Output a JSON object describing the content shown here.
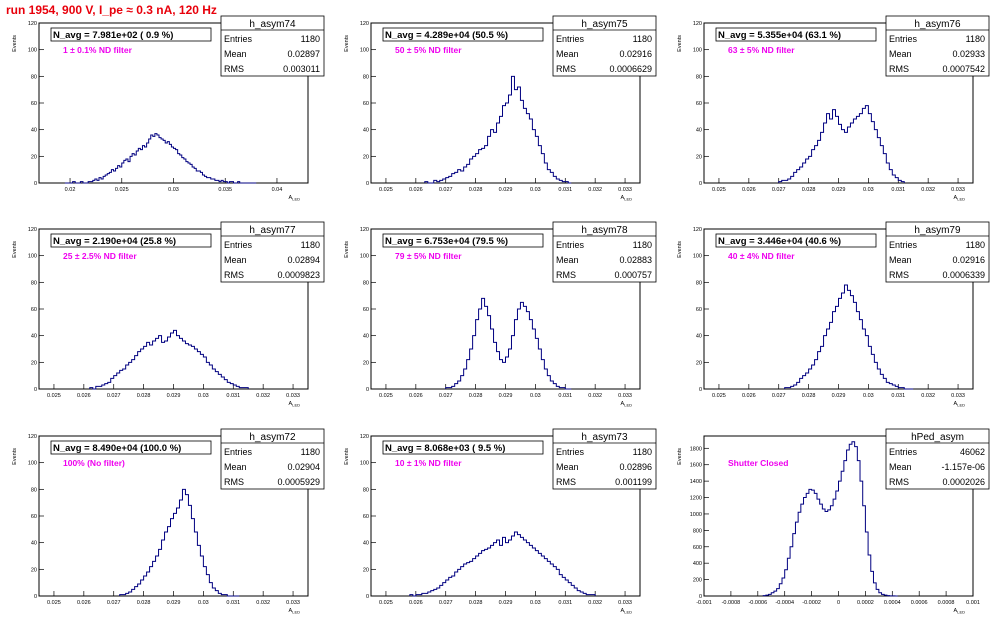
{
  "page": {
    "title": "run 1954,   900 V, I_pe ≈ 0.3 nA, 120 Hz"
  },
  "colors": {
    "histogram": "#000080",
    "label": "#ee00ee",
    "title": "#e8000b",
    "axis": "#000000"
  },
  "stats_labels": {
    "entries": "Entries",
    "mean": "Mean",
    "rms": "RMS"
  },
  "chart_data": [
    {
      "type": "histogram",
      "name": "h_asym74",
      "headline": "N_avg = 7.981e+02 ( 0.9 %)",
      "note": "1 ± 0.1% ND filter",
      "stats": {
        "entries": "1180",
        "mean": "0.02897",
        "rms": "0.003011"
      },
      "xlabel": "A_LED",
      "ylabel": "Events",
      "xlim": [
        0.017,
        0.043
      ],
      "ylim": [
        0,
        120
      ],
      "xticks": [
        0.02,
        0.025,
        0.03,
        0.035,
        0.04
      ],
      "xtick_labels": [
        "0.02",
        "0.025",
        "0.03",
        "0.035",
        "0.04"
      ],
      "yticks": [
        0,
        20,
        40,
        60,
        80,
        100,
        120
      ],
      "bins": [
        [
          0.0195,
          0.022,
          [
            0,
            0,
            0,
            1,
            0,
            0,
            1,
            0,
            0,
            1
          ]
        ],
        [
          0.022,
          0.026,
          [
            1,
            2,
            3,
            2,
            4,
            3,
            5,
            6,
            7,
            8,
            10,
            9,
            11,
            13,
            12,
            15,
            17,
            18,
            16,
            20
          ]
        ],
        [
          0.026,
          0.03,
          [
            22,
            21,
            24,
            26,
            25,
            28,
            27,
            30,
            33,
            36,
            35,
            37,
            36,
            34,
            33,
            32,
            30,
            31,
            29,
            27
          ]
        ],
        [
          0.03,
          0.034,
          [
            26,
            25,
            22,
            21,
            19,
            18,
            16,
            15,
            14,
            12,
            11,
            9,
            9,
            8,
            6,
            5,
            4,
            4,
            3,
            3
          ]
        ],
        [
          0.034,
          0.038,
          [
            2,
            2,
            1,
            2,
            1,
            1,
            0,
            1,
            1,
            0,
            0,
            1,
            0,
            0,
            0,
            0,
            0,
            0,
            0,
            0
          ]
        ]
      ]
    },
    {
      "type": "histogram",
      "name": "h_asym75",
      "headline": "N_avg = 4.289e+04 (50.5 %)",
      "note": "50 ± 5% ND filter",
      "stats": {
        "entries": "1180",
        "mean": "0.02916",
        "rms": "0.0006629"
      },
      "xlabel": "A_LED",
      "ylabel": "Events",
      "xlim": [
        0.0245,
        0.0335
      ],
      "ylim": [
        0,
        120
      ],
      "xticks": [
        0.025,
        0.026,
        0.027,
        0.028,
        0.029,
        0.03,
        0.031,
        0.032,
        0.033
      ],
      "xtick_labels": [
        "0.025",
        "0.026",
        "0.027",
        "0.028",
        "0.029",
        "0.03",
        "0.031",
        "0.032",
        "0.033"
      ],
      "yticks": [
        0,
        20,
        40,
        60,
        80,
        100,
        120
      ],
      "bins": [
        [
          0.0263,
          0.028,
          [
            1,
            0,
            0,
            2,
            1,
            2,
            3,
            4,
            5,
            7,
            8,
            10,
            9,
            12,
            14,
            18,
            20
          ]
        ],
        [
          0.028,
          0.0295,
          [
            22,
            25,
            26,
            28,
            35,
            40,
            38,
            45,
            50,
            58,
            60,
            66,
            80,
            70,
            72
          ]
        ],
        [
          0.0295,
          0.0312,
          [
            62,
            56,
            52,
            48,
            40,
            35,
            28,
            22,
            15,
            10,
            8,
            5,
            3,
            2,
            1,
            1,
            0
          ]
        ]
      ]
    },
    {
      "type": "histogram",
      "name": "h_asym76",
      "headline": "N_avg = 5.355e+04 (63.1 %)",
      "note": "63 ± 5% ND filter",
      "stats": {
        "entries": "1180",
        "mean": "0.02933",
        "rms": "0.0007542"
      },
      "xlabel": "A_LED",
      "ylabel": "Events",
      "xlim": [
        0.0245,
        0.0335
      ],
      "ylim": [
        0,
        120
      ],
      "xticks": [
        0.025,
        0.026,
        0.027,
        0.028,
        0.029,
        0.03,
        0.031,
        0.032,
        0.033
      ],
      "xtick_labels": [
        "0.025",
        "0.026",
        "0.027",
        "0.028",
        "0.029",
        "0.03",
        "0.031",
        "0.032",
        "0.033"
      ],
      "yticks": [
        0,
        20,
        40,
        60,
        80,
        100,
        120
      ],
      "bins": [
        [
          0.027,
          0.0285,
          [
            1,
            2,
            2,
            3,
            5,
            8,
            10,
            12,
            15,
            18,
            20,
            25,
            28,
            32,
            38
          ]
        ],
        [
          0.0285,
          0.03,
          [
            45,
            52,
            48,
            55,
            50,
            44,
            40,
            38,
            42,
            45,
            48,
            50,
            52,
            56,
            58
          ]
        ],
        [
          0.03,
          0.0312,
          [
            52,
            46,
            40,
            34,
            28,
            22,
            15,
            10,
            6,
            4,
            2,
            1
          ]
        ]
      ]
    },
    {
      "type": "histogram",
      "name": "h_asym77",
      "headline": "N_avg = 2.190e+04 (25.8 %)",
      "note": "25 ± 2.5% ND filter",
      "stats": {
        "entries": "1180",
        "mean": "0.02894",
        "rms": "0.0009823"
      },
      "xlabel": "A_LED",
      "ylabel": "Events",
      "xlim": [
        0.0245,
        0.0335
      ],
      "ylim": [
        0,
        120
      ],
      "xticks": [
        0.025,
        0.026,
        0.027,
        0.028,
        0.029,
        0.03,
        0.031,
        0.032,
        0.033
      ],
      "xtick_labels": [
        "0.025",
        "0.026",
        "0.027",
        "0.028",
        "0.029",
        "0.03",
        "0.031",
        "0.032",
        "0.033"
      ],
      "yticks": [
        0,
        20,
        40,
        60,
        80,
        100,
        120
      ],
      "bins": [
        [
          0.0262,
          0.028,
          [
            1,
            0,
            2,
            2,
            3,
            4,
            5,
            8,
            10,
            12,
            14,
            15,
            18,
            20,
            22,
            25,
            28,
            30
          ]
        ],
        [
          0.028,
          0.0298,
          [
            32,
            35,
            33,
            36,
            38,
            40,
            35,
            36,
            39,
            42,
            44,
            40,
            38,
            36,
            34,
            33,
            32,
            30
          ]
        ],
        [
          0.0298,
          0.0315,
          [
            28,
            26,
            24,
            20,
            18,
            15,
            13,
            11,
            9,
            7,
            5,
            4,
            3,
            2,
            1,
            1,
            1
          ]
        ]
      ]
    },
    {
      "type": "histogram",
      "name": "h_asym78",
      "headline": "N_avg = 6.753e+04 (79.5 %)",
      "note": "79 ± 5% ND filter",
      "stats": {
        "entries": "1180",
        "mean": "0.02883",
        "rms": "0.000757"
      },
      "xlabel": "A_LED",
      "ylabel": "Events",
      "xlim": [
        0.0245,
        0.0335
      ],
      "ylim": [
        0,
        120
      ],
      "xticks": [
        0.025,
        0.026,
        0.027,
        0.028,
        0.029,
        0.03,
        0.031,
        0.032,
        0.033
      ],
      "xtick_labels": [
        "0.025",
        "0.026",
        "0.027",
        "0.028",
        "0.029",
        "0.03",
        "0.031",
        "0.032",
        "0.033"
      ],
      "yticks": [
        0,
        20,
        40,
        60,
        80,
        100,
        120
      ],
      "bins": [
        [
          0.027,
          0.0285,
          [
            1,
            1,
            2,
            4,
            6,
            10,
            15,
            22,
            30,
            40,
            52,
            60,
            68,
            62,
            55
          ]
        ],
        [
          0.0285,
          0.03,
          [
            45,
            35,
            28,
            22,
            20,
            24,
            30,
            40,
            52,
            60,
            65,
            62,
            58,
            52,
            45
          ]
        ],
        [
          0.03,
          0.0312,
          [
            38,
            30,
            22,
            15,
            10,
            6,
            4,
            2,
            1,
            1,
            0,
            0
          ]
        ]
      ]
    },
    {
      "type": "histogram",
      "name": "h_asym79",
      "headline": "N_avg = 3.446e+04 (40.6 %)",
      "note": "40 ± 4% ND filter",
      "stats": {
        "entries": "1180",
        "mean": "0.02916",
        "rms": "0.0006339"
      },
      "xlabel": "A_LED",
      "ylabel": "Events",
      "xlim": [
        0.0245,
        0.0335
      ],
      "ylim": [
        0,
        120
      ],
      "xticks": [
        0.025,
        0.026,
        0.027,
        0.028,
        0.029,
        0.03,
        0.031,
        0.032,
        0.033
      ],
      "xtick_labels": [
        "0.025",
        "0.026",
        "0.027",
        "0.028",
        "0.029",
        "0.03",
        "0.031",
        "0.032",
        "0.033"
      ],
      "yticks": [
        0,
        20,
        40,
        60,
        80,
        100,
        120
      ],
      "bins": [
        [
          0.0272,
          0.0287,
          [
            1,
            1,
            2,
            3,
            5,
            8,
            10,
            12,
            15,
            18,
            22,
            28,
            32,
            40,
            45
          ]
        ],
        [
          0.0287,
          0.0302,
          [
            50,
            58,
            62,
            68,
            72,
            78,
            74,
            70,
            65,
            58,
            52,
            45,
            40,
            32,
            26
          ]
        ],
        [
          0.0302,
          0.0315,
          [
            20,
            15,
            11,
            8,
            5,
            4,
            3,
            2,
            1,
            1,
            0,
            0,
            0
          ]
        ]
      ]
    },
    {
      "type": "histogram",
      "name": "h_asym72",
      "headline": "N_avg = 8.490e+04 (100.0 %)",
      "note": "100% (No filter)",
      "stats": {
        "entries": "1180",
        "mean": "0.02904",
        "rms": "0.0005929"
      },
      "xlabel": "A_LED",
      "ylabel": "Events",
      "xlim": [
        0.0245,
        0.0335
      ],
      "ylim": [
        0,
        120
      ],
      "xticks": [
        0.025,
        0.026,
        0.027,
        0.028,
        0.029,
        0.03,
        0.031,
        0.032,
        0.033
      ],
      "xtick_labels": [
        "0.025",
        "0.026",
        "0.027",
        "0.028",
        "0.029",
        "0.03",
        "0.031",
        "0.032",
        "0.033"
      ],
      "yticks": [
        0,
        20,
        40,
        60,
        80,
        100,
        120
      ],
      "bins": [
        [
          0.0272,
          0.0286,
          [
            1,
            1,
            2,
            3,
            5,
            7,
            9,
            12,
            15,
            18,
            22,
            26,
            30,
            35
          ]
        ],
        [
          0.0286,
          0.03,
          [
            42,
            48,
            52,
            58,
            62,
            66,
            72,
            80,
            76,
            68,
            58,
            48,
            38,
            30
          ]
        ],
        [
          0.03,
          0.0312,
          [
            22,
            16,
            10,
            6,
            4,
            2,
            1,
            1,
            0,
            0,
            0,
            0
          ]
        ]
      ]
    },
    {
      "type": "histogram",
      "name": "h_asym73",
      "headline": "N_avg = 8.068e+03 ( 9.5 %)",
      "note": "10 ± 1% ND filter",
      "stats": {
        "entries": "1180",
        "mean": "0.02896",
        "rms": "0.001199"
      },
      "xlabel": "A_LED",
      "ylabel": "Events",
      "xlim": [
        0.0245,
        0.0335
      ],
      "ylim": [
        0,
        120
      ],
      "xticks": [
        0.025,
        0.026,
        0.027,
        0.028,
        0.029,
        0.03,
        0.031,
        0.032,
        0.033
      ],
      "xtick_labels": [
        "0.025",
        "0.026",
        "0.027",
        "0.028",
        "0.029",
        "0.03",
        "0.031",
        "0.032",
        "0.033"
      ],
      "yticks": [
        0,
        20,
        40,
        60,
        80,
        100,
        120
      ],
      "bins": [
        [
          0.0258,
          0.0278,
          [
            1,
            0,
            1,
            1,
            2,
            2,
            3,
            4,
            5,
            6,
            8,
            10,
            12,
            14,
            15,
            18,
            20,
            22,
            24,
            25
          ]
        ],
        [
          0.0278,
          0.0298,
          [
            26,
            28,
            30,
            32,
            34,
            35,
            36,
            38,
            40,
            42,
            38,
            44,
            40,
            42,
            45,
            48,
            46,
            44,
            42,
            40
          ]
        ],
        [
          0.0298,
          0.032,
          [
            38,
            36,
            34,
            32,
            30,
            28,
            26,
            24,
            22,
            20,
            16,
            14,
            12,
            10,
            8,
            6,
            4,
            3,
            2,
            1,
            1,
            1
          ]
        ]
      ]
    },
    {
      "type": "histogram",
      "name": "hPed_asym",
      "headline": "",
      "note": "Shutter Closed",
      "stats": {
        "entries": "46062",
        "mean": "-1.157e-06",
        "rms": "0.0002026"
      },
      "xlabel": "A_LED",
      "ylabel": "Events",
      "xlim": [
        -0.001,
        0.001
      ],
      "ylim": [
        0,
        1950
      ],
      "xticks": [
        -0.001,
        -0.0008,
        -0.0006,
        -0.0004,
        -0.0002,
        0,
        0.0002,
        0.0004,
        0.0006,
        0.0008,
        0.001
      ],
      "xtick_labels": [
        "-0.001",
        "-0.0008",
        "-0.0006",
        "-0.0004",
        "-0.0002",
        "0",
        "0.0002",
        "0.0004",
        "0.0006",
        "0.0008",
        "0.001"
      ],
      "yticks": [
        0,
        200,
        400,
        600,
        800,
        1000,
        1200,
        1400,
        1600,
        1800
      ],
      "bins": [
        [
          -0.00056,
          -0.00016,
          [
            5,
            10,
            20,
            40,
            60,
            90,
            150,
            220,
            320,
            460,
            600,
            760,
            900,
            1020,
            1120,
            1200,
            1250,
            1300,
            1290,
            1250
          ]
        ],
        [
          -0.00016,
          0.00024,
          [
            1180,
            1120,
            1060,
            1030,
            1050,
            1100,
            1180,
            1280,
            1400,
            1520,
            1650,
            1780,
            1850,
            1880,
            1820,
            1650,
            1400,
            1100,
            780,
            500
          ]
        ],
        [
          0.00024,
          0.00044,
          [
            300,
            160,
            80,
            40,
            20,
            10,
            5,
            2,
            1,
            0
          ]
        ]
      ]
    }
  ]
}
